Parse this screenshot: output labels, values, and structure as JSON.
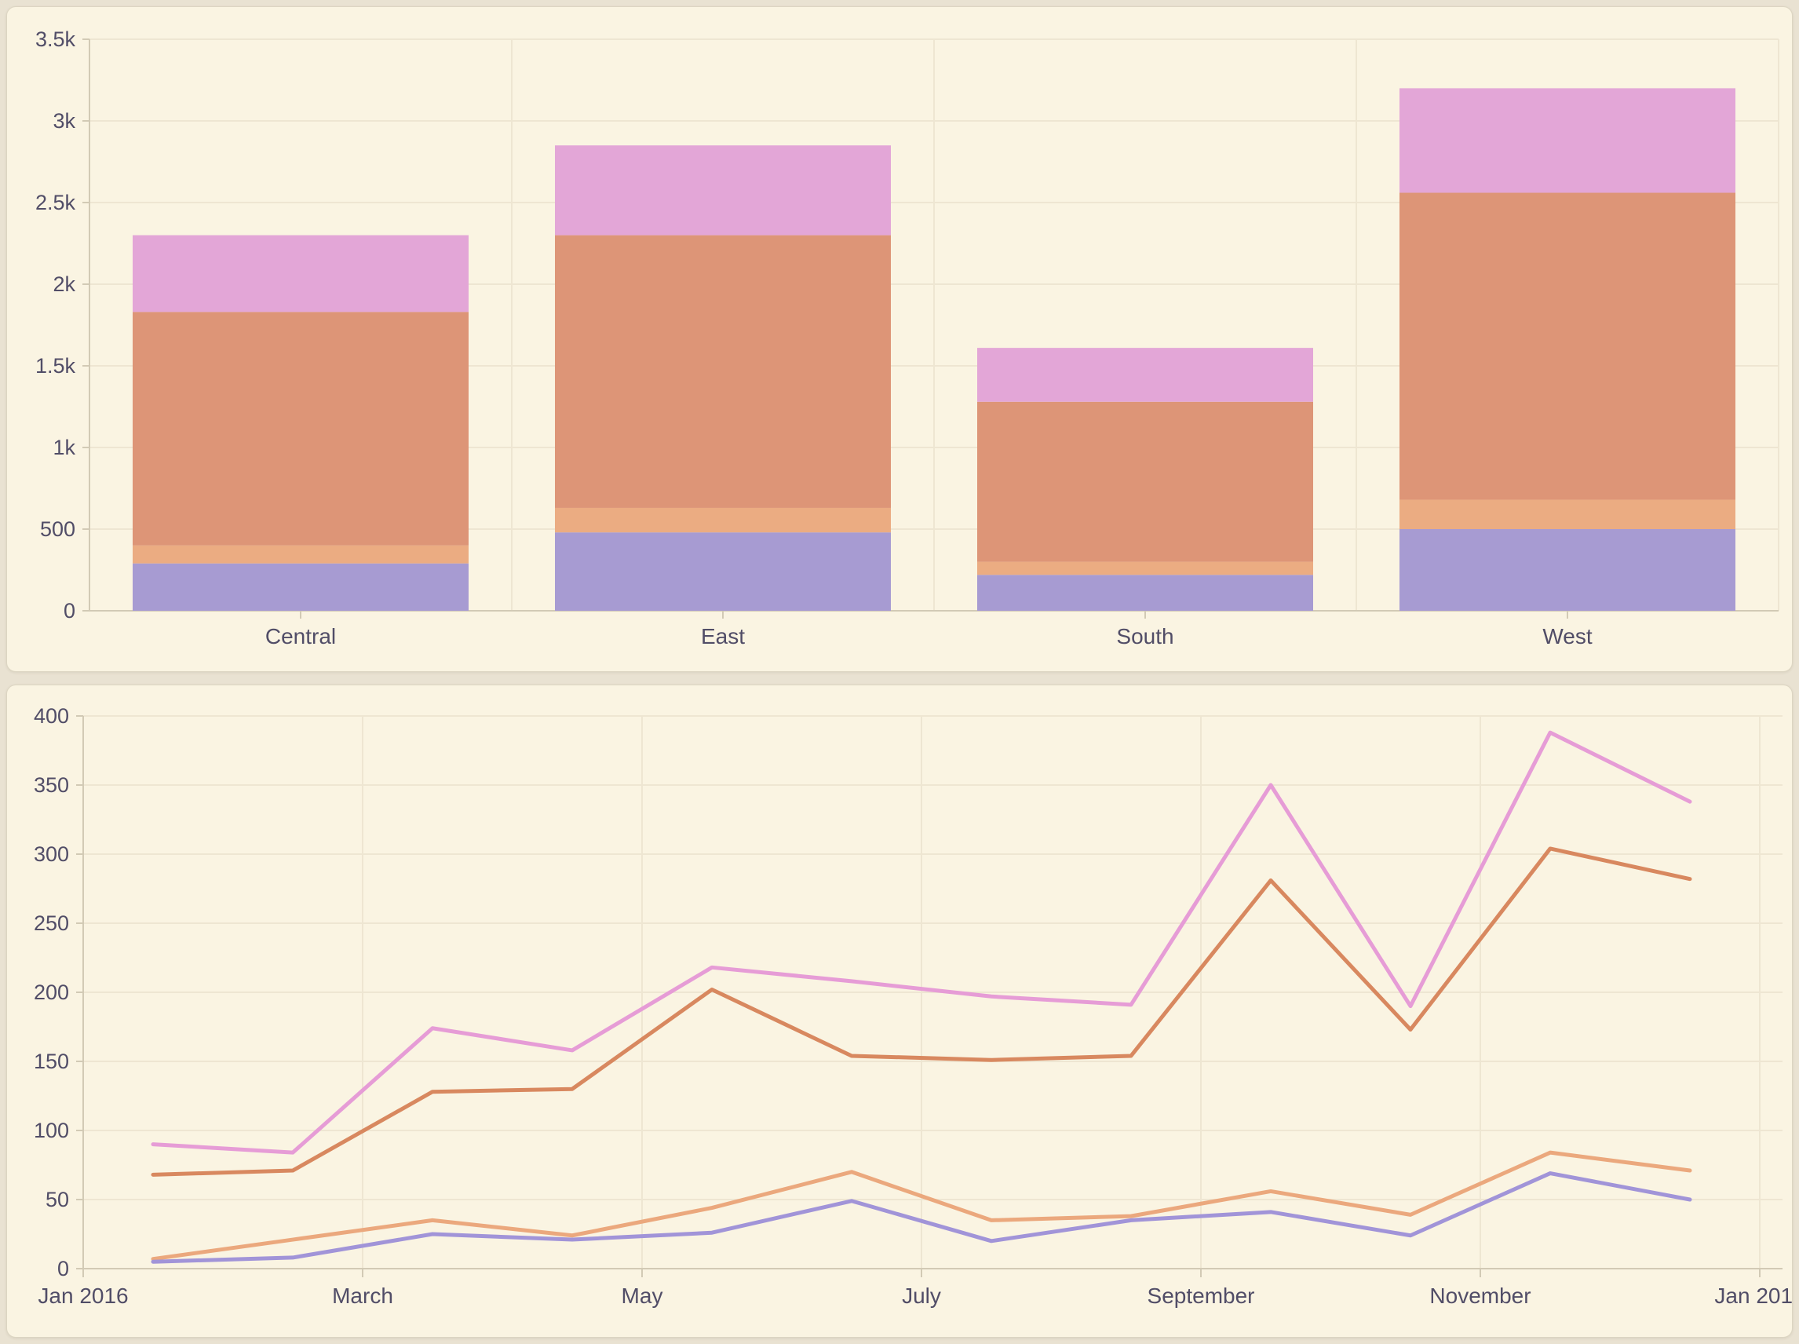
{
  "page": {
    "background": "#e9e2d2",
    "panel_background": "#faf4e2",
    "panel_border": "#dcd5c2",
    "grid_color": "#eee6d2",
    "axis_line_color": "#d2cab5",
    "tick_text_color": "#514d67"
  },
  "chart_data": [
    {
      "type": "bar",
      "stacked": true,
      "title": "",
      "xlabel": "",
      "ylabel": "",
      "legend": "none",
      "grid": true,
      "categories": [
        "Central",
        "East",
        "South",
        "West"
      ],
      "series": [
        {
          "name": "series-purple",
          "color": "#a79bd2",
          "values": [
            290,
            480,
            220,
            500
          ]
        },
        {
          "name": "series-tan",
          "color": "#ebac82",
          "values": [
            110,
            150,
            80,
            180
          ]
        },
        {
          "name": "series-salmon",
          "color": "#dd9577",
          "values": [
            1430,
            1670,
            980,
            1880
          ]
        },
        {
          "name": "series-pink",
          "color": "#e3a6d7",
          "values": [
            470,
            550,
            330,
            640
          ]
        }
      ],
      "stack_totals": [
        2300,
        2850,
        1610,
        3200
      ],
      "ylim": [
        0,
        3500
      ],
      "yticks": [
        {
          "v": 0,
          "label": "0"
        },
        {
          "v": 500,
          "label": "500"
        },
        {
          "v": 1000,
          "label": "1k"
        },
        {
          "v": 1500,
          "label": "1.5k"
        },
        {
          "v": 2000,
          "label": "2k"
        },
        {
          "v": 2500,
          "label": "2.5k"
        },
        {
          "v": 3000,
          "label": "3k"
        },
        {
          "v": 3500,
          "label": "3.5k"
        }
      ]
    },
    {
      "type": "line",
      "title": "",
      "xlabel": "",
      "ylabel": "",
      "legend": "none",
      "grid": true,
      "x_months": [
        "Jan",
        "Feb",
        "Mar",
        "Apr",
        "May",
        "Jun",
        "Jul",
        "Aug",
        "Sep",
        "Oct",
        "Nov",
        "Dec"
      ],
      "x_tick_labels": [
        {
          "month": 0,
          "label": "Jan 2016"
        },
        {
          "month": 2,
          "label": "March"
        },
        {
          "month": 4,
          "label": "May"
        },
        {
          "month": 6,
          "label": "July"
        },
        {
          "month": 8,
          "label": "September"
        },
        {
          "month": 10,
          "label": "November"
        },
        {
          "month": 12,
          "label": "Jan 2017"
        }
      ],
      "series": [
        {
          "name": "line-pink",
          "color": "#e69cd6",
          "values": [
            90,
            84,
            174,
            158,
            218,
            208,
            197,
            191,
            350,
            190,
            388,
            338
          ]
        },
        {
          "name": "line-orange",
          "color": "#d8885f",
          "values": [
            68,
            71,
            128,
            130,
            202,
            154,
            151,
            154,
            281,
            173,
            304,
            282
          ]
        },
        {
          "name": "line-tan",
          "color": "#eba87d",
          "values": [
            7,
            21,
            35,
            24,
            44,
            70,
            35,
            38,
            56,
            39,
            84,
            71
          ]
        },
        {
          "name": "line-purple",
          "color": "#a194d8",
          "values": [
            5,
            8,
            25,
            21,
            26,
            49,
            20,
            35,
            41,
            24,
            69,
            50
          ]
        }
      ],
      "ylim": [
        0,
        400
      ],
      "ytick_step": 50
    }
  ]
}
